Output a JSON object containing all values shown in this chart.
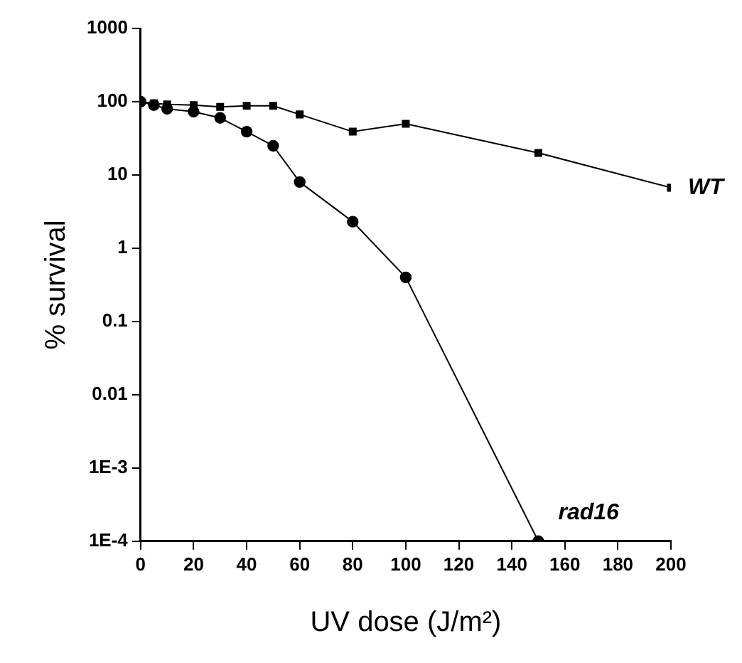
{
  "chart_data": {
    "type": "line",
    "xlabel": "UV dose (J/m²)",
    "ylabel": "% survival",
    "log": "y",
    "grid": false,
    "legend": false,
    "xlim": [
      0,
      200
    ],
    "xticks": [
      0,
      20,
      40,
      60,
      80,
      100,
      120,
      140,
      160,
      180,
      200
    ],
    "ylim": [
      0.0001,
      1000
    ],
    "yticks": [
      {
        "value": 0.0001,
        "label": "1E-4"
      },
      {
        "value": 0.001,
        "label": "1E-3"
      },
      0.01,
      0.1,
      1,
      10,
      100,
      1000
    ],
    "series": [
      {
        "name": "WT",
        "color": "#000000",
        "marker": "square",
        "x": [
          0,
          5,
          10,
          20,
          30,
          40,
          50,
          60,
          80,
          100,
          150,
          200
        ],
        "values": [
          100,
          95,
          92,
          90,
          85,
          88,
          88,
          67,
          39,
          50,
          20,
          6.7
        ]
      },
      {
        "name": "rad16",
        "color": "#000000",
        "marker": "circle",
        "x": [
          0,
          5,
          10,
          20,
          30,
          40,
          50,
          60,
          80,
          100,
          150
        ],
        "values": [
          100,
          90,
          80,
          73,
          60,
          39,
          25,
          8,
          2.3,
          0.4,
          0.0001
        ]
      }
    ]
  }
}
